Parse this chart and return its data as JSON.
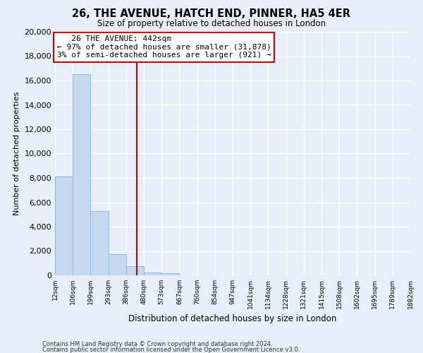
{
  "title": "26, THE AVENUE, HATCH END, PINNER, HA5 4ER",
  "subtitle": "Size of property relative to detached houses in London",
  "xlabel": "Distribution of detached houses by size in London",
  "ylabel": "Number of detached properties",
  "bar_color": "#c5d8f0",
  "bar_edge_color": "#8fb8d8",
  "bin_labels": [
    "12sqm",
    "106sqm",
    "199sqm",
    "293sqm",
    "386sqm",
    "480sqm",
    "573sqm",
    "667sqm",
    "760sqm",
    "854sqm",
    "947sqm",
    "1041sqm",
    "1134sqm",
    "1228sqm",
    "1321sqm",
    "1415sqm",
    "1508sqm",
    "1602sqm",
    "1695sqm",
    "1789sqm",
    "1882sqm"
  ],
  "bar_heights": [
    8100,
    16500,
    5300,
    1750,
    750,
    250,
    200,
    0,
    0,
    0,
    0,
    0,
    0,
    0,
    0,
    0,
    0,
    0,
    0,
    0
  ],
  "ylim": [
    0,
    20000
  ],
  "yticks": [
    0,
    2000,
    4000,
    6000,
    8000,
    10000,
    12000,
    14000,
    16000,
    18000,
    20000
  ],
  "property_line_color": "#cc0000",
  "annotation_title": "26 THE AVENUE: 442sqm",
  "annotation_line1": "← 97% of detached houses are smaller (31,878)",
  "annotation_line2": "3% of semi-detached houses are larger (921) →",
  "annotation_box_facecolor": "#ffffff",
  "annotation_box_edgecolor": "#cc0000",
  "footer_line1": "Contains HM Land Registry data © Crown copyright and database right 2024.",
  "footer_line2": "Contains public sector information licensed under the Open Government Licence v3.0.",
  "background_color": "#e8eef8",
  "grid_color": "#ffffff",
  "num_bins": 20
}
